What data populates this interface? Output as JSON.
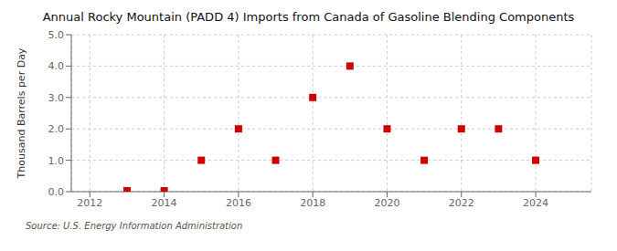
{
  "chart_data": {
    "type": "scatter",
    "title": "Annual Rocky Mountain (PADD 4) Imports from Canada of Gasoline Blending Components",
    "ylabel": "Thousand Barrels per Day",
    "annotations": [
      "Source: U.S. Energy Information Administration"
    ],
    "x": [
      2013,
      2014,
      2015,
      2016,
      2017,
      2018,
      2019,
      2020,
      2021,
      2022,
      2023,
      2024
    ],
    "values": [
      0.03,
      0.03,
      1.0,
      2.0,
      1.0,
      3.0,
      4.0,
      2.0,
      1.0,
      2.0,
      2.0,
      1.0
    ],
    "color": "#cc0000",
    "marker": "square",
    "xlim": [
      2011.5,
      2025.5
    ],
    "ylim": [
      0,
      5.0
    ],
    "xticks": [
      2012,
      2014,
      2016,
      2018,
      2020,
      2022,
      2024
    ],
    "yticks": [
      {
        "value": 0,
        "label": "0.0"
      },
      {
        "value": 1,
        "label": "1.0"
      },
      {
        "value": 2,
        "label": "2.0"
      },
      {
        "value": 3,
        "label": "3.0"
      },
      {
        "value": 4,
        "label": "4.0"
      },
      {
        "value": 5,
        "label": "5.0"
      }
    ],
    "grid": true
  }
}
